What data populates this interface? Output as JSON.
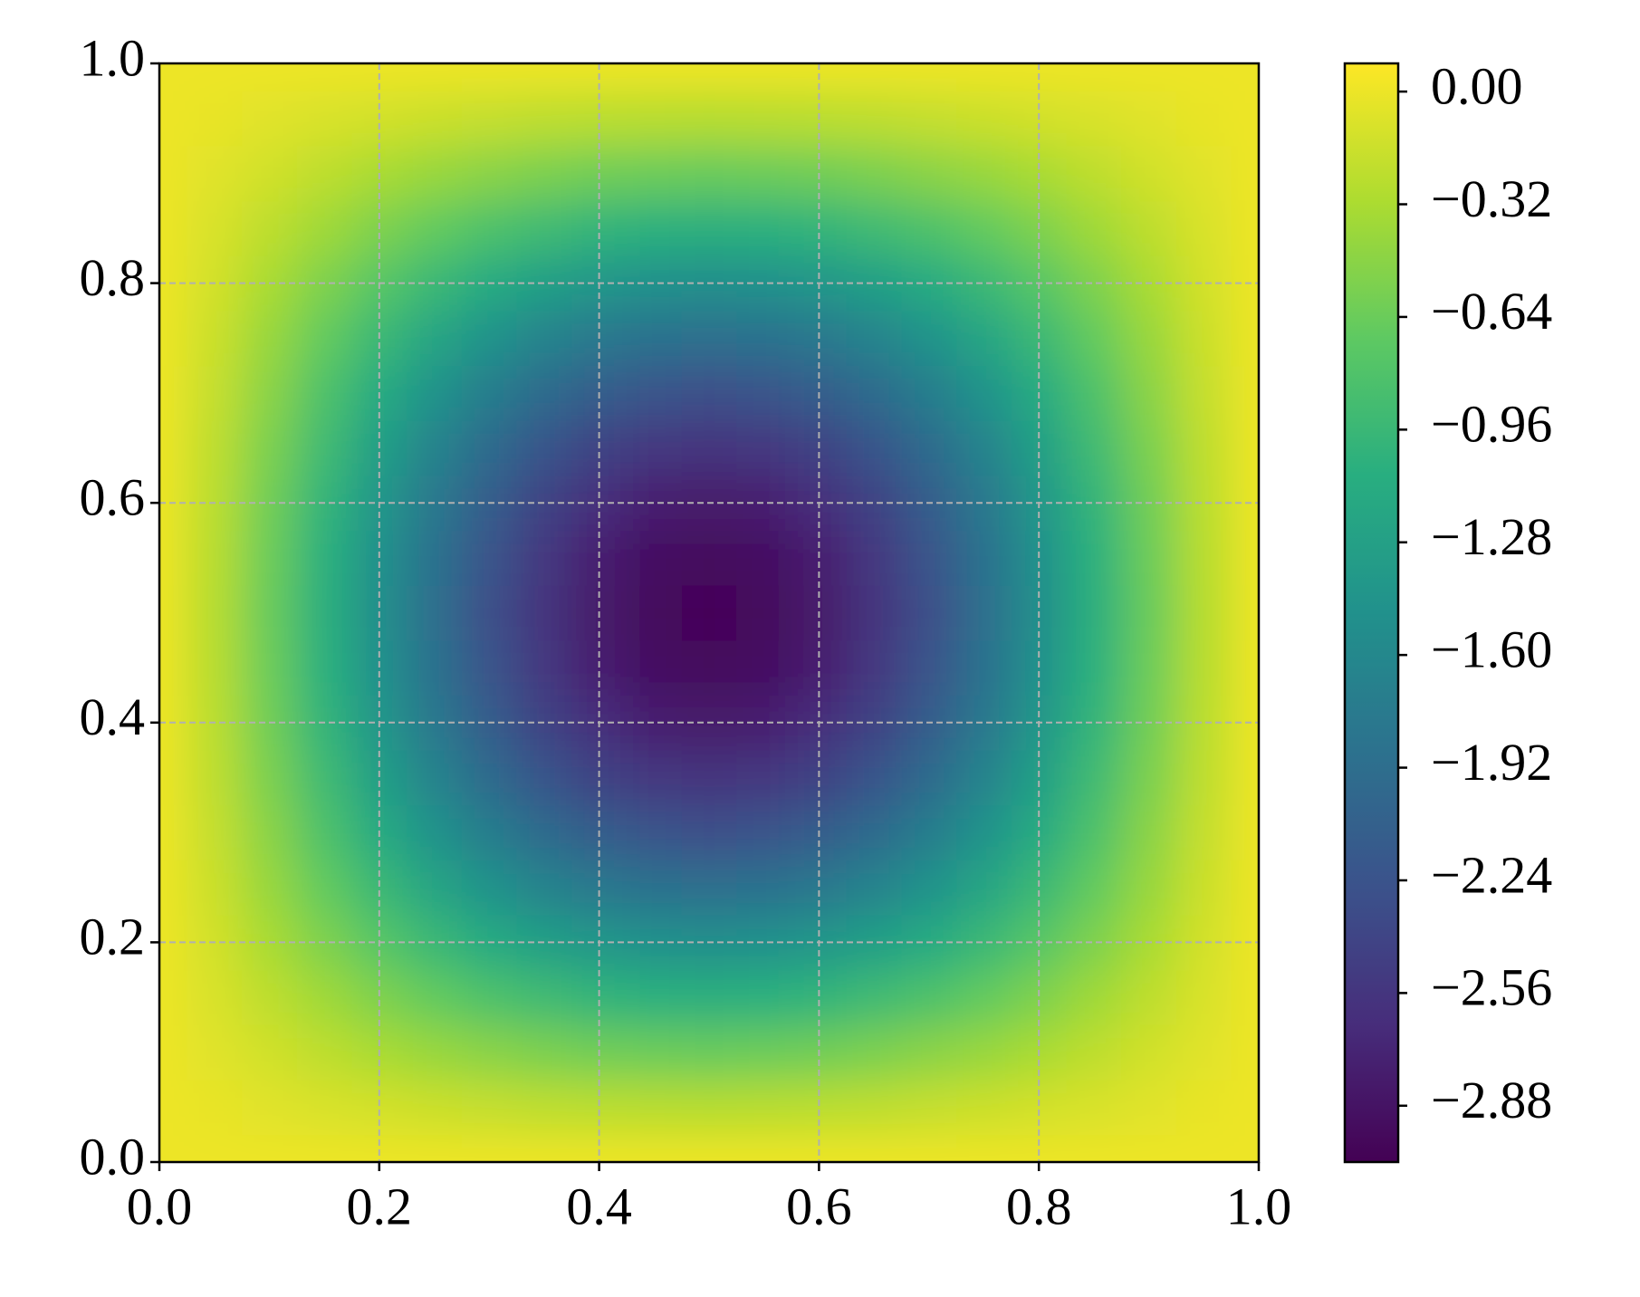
{
  "chart_data": {
    "type": "contour",
    "colormap": "viridis",
    "grid": true,
    "x": [
      0,
      0.05,
      0.1,
      0.15,
      0.2,
      0.25,
      0.3,
      0.35,
      0.4,
      0.45,
      0.5,
      0.55,
      0.6,
      0.65,
      0.7,
      0.75,
      0.8,
      0.85,
      0.9,
      0.95,
      1
    ],
    "y": [
      0,
      0.05,
      0.1,
      0.15,
      0.2,
      0.25,
      0.3,
      0.35,
      0.4,
      0.45,
      0.5,
      0.55,
      0.6,
      0.65,
      0.7,
      0.75,
      0.8,
      0.85,
      0.9,
      0.95,
      1
    ],
    "z": [
      [
        0,
        0,
        0,
        0,
        0,
        0,
        0,
        0,
        0,
        0,
        0,
        0,
        0,
        0,
        0,
        0,
        0,
        0,
        0,
        0,
        0
      ],
      [
        0,
        -0.02,
        -0.06,
        -0.1,
        -0.13,
        -0.17,
        -0.2,
        -0.23,
        -0.25,
        -0.26,
        -0.27,
        -0.26,
        -0.25,
        -0.23,
        -0.2,
        -0.17,
        -0.13,
        -0.1,
        -0.06,
        -0.02,
        0
      ],
      [
        0,
        -0.06,
        -0.14,
        -0.23,
        -0.33,
        -0.42,
        -0.49,
        -0.56,
        -0.61,
        -0.64,
        -0.65,
        -0.64,
        -0.61,
        -0.56,
        -0.49,
        -0.42,
        -0.33,
        -0.23,
        -0.14,
        -0.06,
        0
      ],
      [
        0,
        -0.1,
        -0.23,
        -0.38,
        -0.54,
        -0.68,
        -0.82,
        -0.92,
        -1.01,
        -1.06,
        -1.07,
        -1.06,
        -1.01,
        -0.92,
        -0.82,
        -0.68,
        -0.54,
        -0.38,
        -0.23,
        -0.1,
        0
      ],
      [
        0,
        -0.13,
        -0.33,
        -0.54,
        -0.75,
        -0.96,
        -1.14,
        -1.29,
        -1.41,
        -1.48,
        -1.5,
        -1.48,
        -1.41,
        -1.29,
        -1.14,
        -0.96,
        -0.75,
        -0.54,
        -0.33,
        -0.13,
        0
      ],
      [
        0,
        -0.17,
        -0.42,
        -0.68,
        -0.96,
        -1.22,
        -1.45,
        -1.65,
        -1.79,
        -1.88,
        -1.91,
        -1.88,
        -1.79,
        -1.65,
        -1.45,
        -1.22,
        -0.96,
        -0.68,
        -0.42,
        -0.17,
        0
      ],
      [
        0,
        -0.2,
        -0.49,
        -0.82,
        -1.14,
        -1.45,
        -1.73,
        -1.96,
        -2.13,
        -2.24,
        -2.28,
        -2.24,
        -2.13,
        -1.96,
        -1.73,
        -1.45,
        -1.14,
        -0.82,
        -0.49,
        -0.2,
        0
      ],
      [
        0,
        -0.23,
        -0.56,
        -0.92,
        -1.29,
        -1.65,
        -1.96,
        -2.22,
        -2.42,
        -2.54,
        -2.58,
        -2.54,
        -2.42,
        -2.22,
        -1.96,
        -1.65,
        -1.29,
        -0.92,
        -0.56,
        -0.23,
        0
      ],
      [
        0,
        -0.25,
        -0.61,
        -1.01,
        -1.41,
        -1.79,
        -2.13,
        -2.42,
        -2.63,
        -2.77,
        -2.81,
        -2.77,
        -2.63,
        -2.42,
        -2.13,
        -1.79,
        -1.41,
        -1.01,
        -0.61,
        -0.25,
        0
      ],
      [
        0,
        -0.26,
        -0.64,
        -1.06,
        -1.48,
        -1.88,
        -2.24,
        -2.54,
        -2.77,
        -2.9,
        -2.95,
        -2.9,
        -2.77,
        -2.54,
        -2.24,
        -1.88,
        -1.48,
        -1.06,
        -0.64,
        -0.26,
        0
      ],
      [
        0,
        -0.27,
        -0.65,
        -1.07,
        -1.5,
        -1.91,
        -2.28,
        -2.58,
        -2.81,
        -2.95,
        -3,
        -2.95,
        -2.81,
        -2.58,
        -2.28,
        -1.91,
        -1.5,
        -1.07,
        -0.65,
        -0.27,
        0
      ],
      [
        0,
        -0.26,
        -0.64,
        -1.06,
        -1.48,
        -1.88,
        -2.24,
        -2.54,
        -2.77,
        -2.9,
        -2.95,
        -2.9,
        -2.77,
        -2.54,
        -2.24,
        -1.88,
        -1.48,
        -1.06,
        -0.64,
        -0.26,
        0
      ],
      [
        0,
        -0.25,
        -0.61,
        -1.01,
        -1.41,
        -1.79,
        -2.13,
        -2.42,
        -2.63,
        -2.77,
        -2.81,
        -2.77,
        -2.63,
        -2.42,
        -2.13,
        -1.79,
        -1.41,
        -1.01,
        -0.61,
        -0.25,
        0
      ],
      [
        0,
        -0.23,
        -0.56,
        -0.92,
        -1.29,
        -1.65,
        -1.96,
        -2.22,
        -2.42,
        -2.54,
        -2.58,
        -2.54,
        -2.42,
        -2.22,
        -1.96,
        -1.65,
        -1.29,
        -0.92,
        -0.56,
        -0.23,
        0
      ],
      [
        0,
        -0.2,
        -0.49,
        -0.82,
        -1.14,
        -1.45,
        -1.73,
        -1.96,
        -2.13,
        -2.24,
        -2.28,
        -2.24,
        -2.13,
        -1.96,
        -1.73,
        -1.45,
        -1.14,
        -0.82,
        -0.49,
        -0.2,
        0
      ],
      [
        0,
        -0.17,
        -0.42,
        -0.68,
        -0.96,
        -1.22,
        -1.45,
        -1.65,
        -1.79,
        -1.88,
        -1.91,
        -1.88,
        -1.79,
        -1.65,
        -1.45,
        -1.22,
        -0.96,
        -0.68,
        -0.42,
        -0.17,
        0
      ],
      [
        0,
        -0.13,
        -0.33,
        -0.54,
        -0.75,
        -0.96,
        -1.14,
        -1.29,
        -1.41,
        -1.48,
        -1.5,
        -1.48,
        -1.41,
        -1.29,
        -1.14,
        -0.96,
        -0.75,
        -0.54,
        -0.33,
        -0.13,
        0
      ],
      [
        0,
        -0.1,
        -0.23,
        -0.38,
        -0.54,
        -0.68,
        -0.82,
        -0.92,
        -1.01,
        -1.06,
        -1.07,
        -1.06,
        -1.01,
        -0.92,
        -0.82,
        -0.68,
        -0.54,
        -0.38,
        -0.23,
        -0.1,
        0
      ],
      [
        0,
        -0.06,
        -0.14,
        -0.23,
        -0.33,
        -0.42,
        -0.49,
        -0.56,
        -0.61,
        -0.64,
        -0.65,
        -0.64,
        -0.61,
        -0.56,
        -0.49,
        -0.42,
        -0.33,
        -0.23,
        -0.14,
        -0.06,
        0
      ],
      [
        0,
        -0.02,
        -0.06,
        -0.1,
        -0.13,
        -0.17,
        -0.2,
        -0.23,
        -0.25,
        -0.26,
        -0.27,
        -0.26,
        -0.25,
        -0.23,
        -0.2,
        -0.17,
        -0.13,
        -0.1,
        -0.06,
        -0.02,
        0
      ],
      [
        0,
        0,
        0,
        0,
        0,
        0,
        0,
        0,
        0,
        0,
        0,
        0,
        0,
        0,
        0,
        0,
        0,
        0,
        0,
        0,
        0
      ]
    ],
    "xlim": [
      0,
      1
    ],
    "ylim": [
      0,
      1
    ],
    "xticks": [
      {
        "value": 0,
        "label": "0.0"
      },
      {
        "value": 0.2,
        "label": "0.2"
      },
      {
        "value": 0.4,
        "label": "0.4"
      },
      {
        "value": 0.6,
        "label": "0.6"
      },
      {
        "value": 0.8,
        "label": "0.8"
      },
      {
        "value": 1,
        "label": "1.0"
      }
    ],
    "yticks": [
      {
        "value": 0,
        "label": "0.0"
      },
      {
        "value": 0.2,
        "label": "0.2"
      },
      {
        "value": 0.4,
        "label": "0.4"
      },
      {
        "value": 0.6,
        "label": "0.6"
      },
      {
        "value": 0.8,
        "label": "0.8"
      },
      {
        "value": 1,
        "label": "1.0"
      }
    ],
    "colorbar": {
      "lim": [
        -3.04,
        0.08
      ],
      "ticks": [
        {
          "value": 0,
          "label": "0.00"
        },
        {
          "value": -0.32,
          "label": "−0.32"
        },
        {
          "value": -0.64,
          "label": "−0.64"
        },
        {
          "value": -0.96,
          "label": "−0.96"
        },
        {
          "value": -1.28,
          "label": "−1.28"
        },
        {
          "value": -1.6,
          "label": "−1.60"
        },
        {
          "value": -1.92,
          "label": "−1.92"
        },
        {
          "value": -2.24,
          "label": "−2.24"
        },
        {
          "value": -2.56,
          "label": "−2.56"
        },
        {
          "value": -2.88,
          "label": "−2.88"
        }
      ]
    }
  }
}
